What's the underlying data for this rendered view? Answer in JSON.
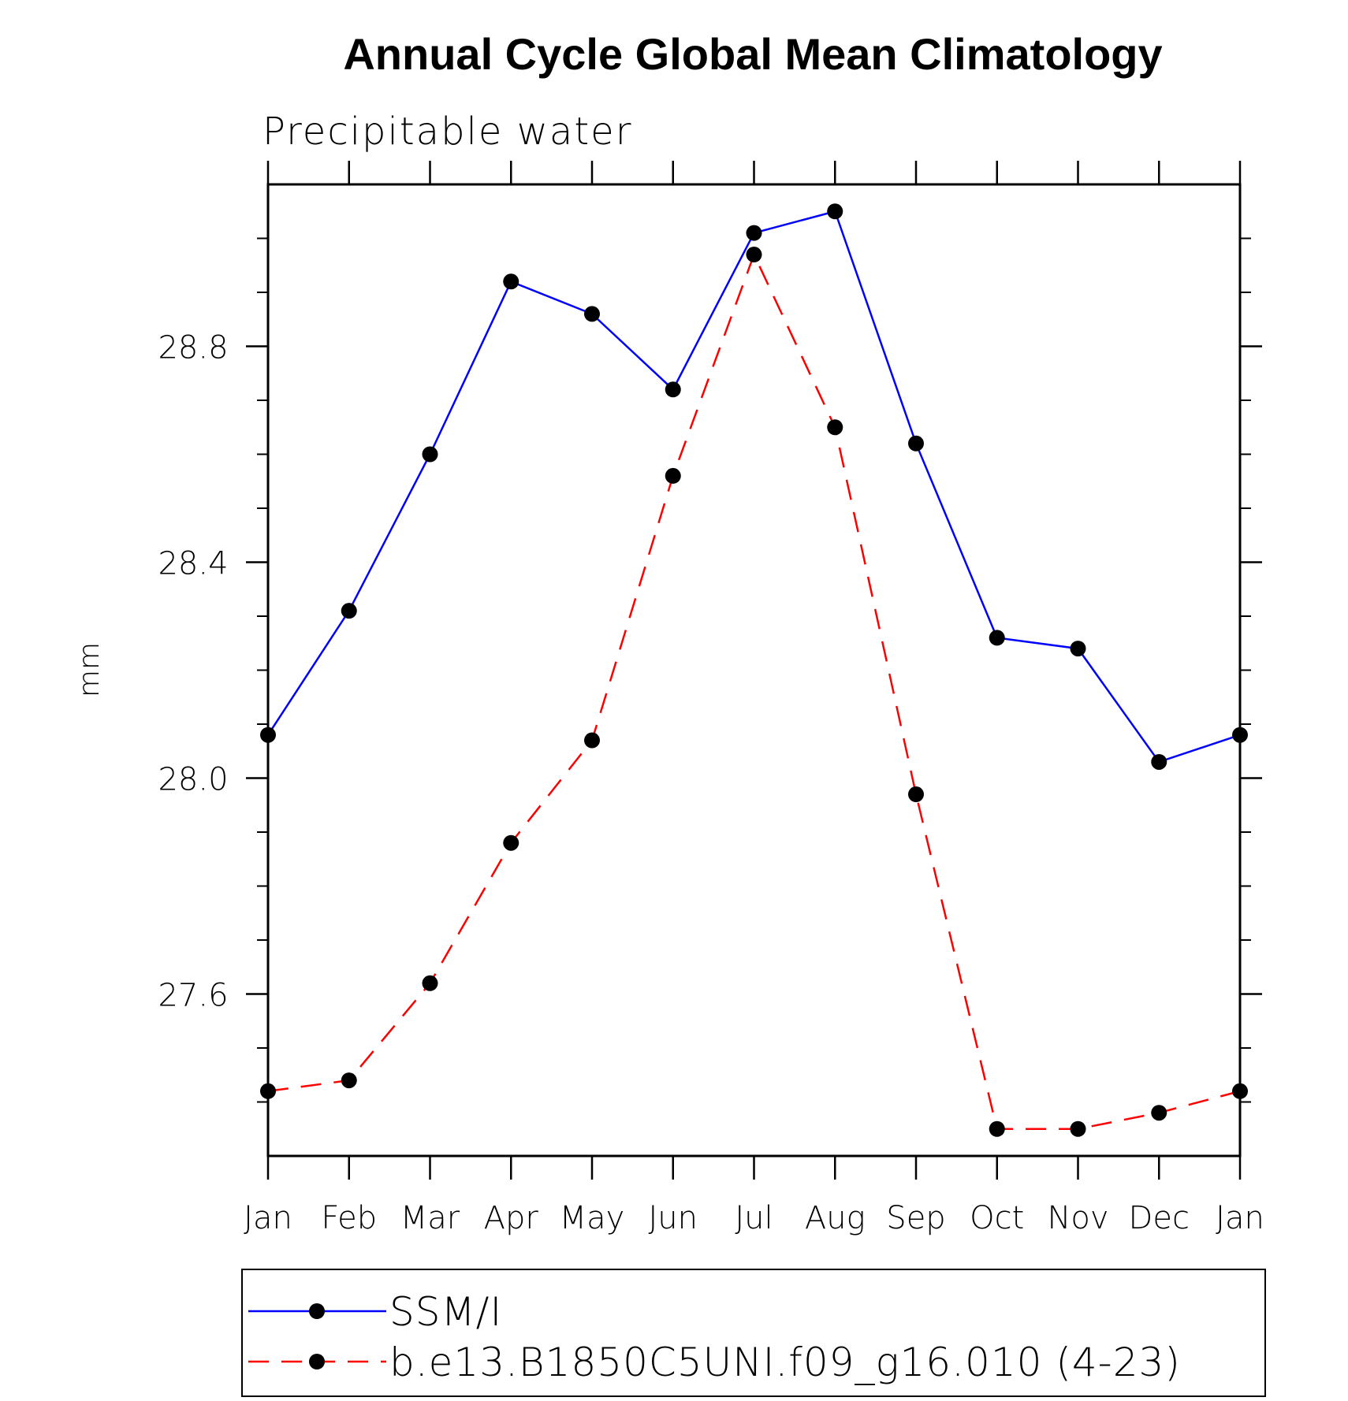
{
  "chart_data": {
    "type": "line",
    "title": "Annual Cycle Global Mean Climatology",
    "subtitle": "Precipitable water",
    "xlabel": "",
    "ylabel": "mm",
    "categories": [
      "Jan",
      "Feb",
      "Mar",
      "Apr",
      "May",
      "Jun",
      "Jul",
      "Aug",
      "Sep",
      "Oct",
      "Nov",
      "Dec",
      "Jan"
    ],
    "ylim": [
      27.3,
      29.1
    ],
    "y_ticks": [
      27.6,
      28.0,
      28.4,
      28.8
    ],
    "y_tick_labels": [
      "27.6",
      "28.0",
      "28.4",
      "28.8"
    ],
    "y_minor_step": 0.1,
    "grid": false,
    "legend_position": "bottom",
    "series": [
      {
        "name": "SSM/I",
        "color": "#0000ff",
        "line_style": "solid",
        "marker": "filled-circle",
        "values": [
          28.08,
          28.31,
          28.6,
          28.92,
          28.86,
          28.72,
          29.01,
          29.05,
          28.62,
          28.26,
          28.24,
          28.03,
          28.08
        ]
      },
      {
        "name": "b.e13.B1850C5UNI.f09_g16.010 (4-23)",
        "color": "#ff0000",
        "line_style": "dashed",
        "marker": "filled-circle",
        "values": [
          27.42,
          27.44,
          27.62,
          27.88,
          28.07,
          28.56,
          28.97,
          28.65,
          27.97,
          27.35,
          27.35,
          27.38,
          27.42
        ]
      }
    ]
  }
}
